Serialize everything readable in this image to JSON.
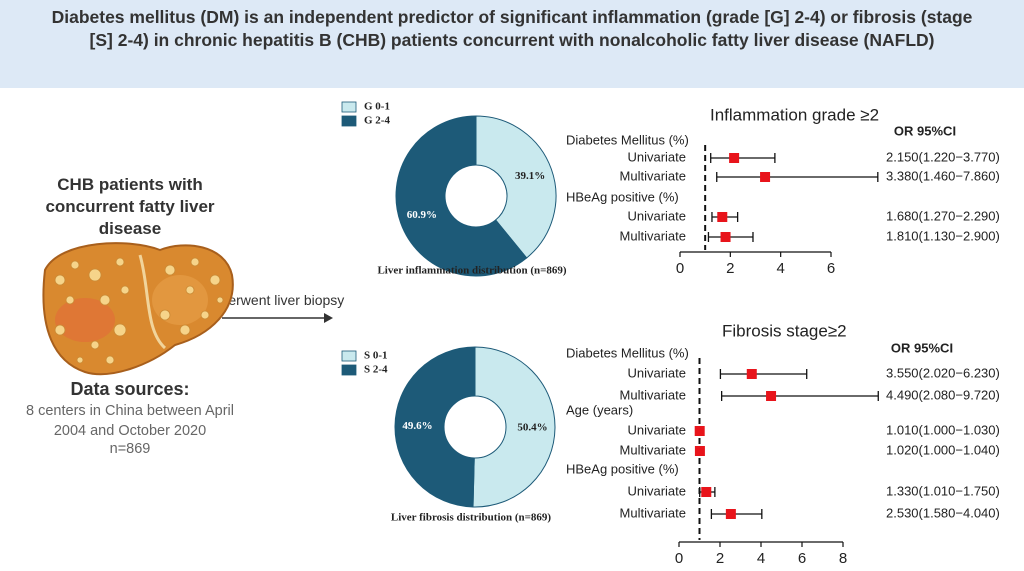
{
  "title": "Diabetes mellitus (DM) is an independent predictor of significant inflammation (grade [G] 2-4) or fibrosis (stage [S] 2-4) in chronic hepatitis B (CHB) patients concurrent with nonalcoholic fatty liver disease (NAFLD)",
  "left": {
    "heading": "CHB patients with concurrent fatty liver disease",
    "arrow_label": "underwent liver biopsy",
    "sources_title": "Data sources:",
    "sources_text": "8 centers in China between April 2004 and October 2020",
    "n": "n=869"
  },
  "chart_data": [
    {
      "type": "donut",
      "title": "Liver inflammation distribution (n=869)",
      "categories": [
        "G 0-1",
        "G 2-4"
      ],
      "values": [
        39.1,
        60.9
      ],
      "value_labels": [
        "39.1%",
        "60.9%"
      ],
      "colors": [
        "#c9e9ee",
        "#1d5a78"
      ]
    },
    {
      "type": "forest",
      "title": "Inflammation grade ≥2",
      "column_header": "OR 95%CI",
      "xlim": [
        0,
        6
      ],
      "xticks": [
        0,
        2,
        4,
        6
      ],
      "reference": 1,
      "marker_color": "#e8141b",
      "groups": [
        {
          "name": "Diabetes Mellitus (%)",
          "rows": [
            {
              "label": "Univariate",
              "or": 2.15,
              "lower": 1.22,
              "upper": 3.77,
              "text": "2.150(1.220−3.770)"
            },
            {
              "label": "Multivariate",
              "or": 3.38,
              "lower": 1.46,
              "upper": 7.86,
              "text": "3.380(1.460−7.860)"
            }
          ]
        },
        {
          "name": "HBeAg positive (%)",
          "rows": [
            {
              "label": "Univariate",
              "or": 1.68,
              "lower": 1.27,
              "upper": 2.29,
              "text": "1.680(1.270−2.290)"
            },
            {
              "label": "Multivariate",
              "or": 1.81,
              "lower": 1.13,
              "upper": 2.9,
              "text": "1.810(1.130−2.900)"
            }
          ]
        }
      ]
    },
    {
      "type": "donut",
      "title": "Liver fibrosis distribution (n=869)",
      "categories": [
        "S 0-1",
        "S 2-4"
      ],
      "values": [
        50.4,
        49.6
      ],
      "value_labels": [
        "50.4%",
        "49.6%"
      ],
      "colors": [
        "#c9e9ee",
        "#1d5a78"
      ]
    },
    {
      "type": "forest",
      "title": "Fibrosis stage≥2",
      "column_header": "OR 95%CI",
      "xlim": [
        0,
        8
      ],
      "xticks": [
        0,
        2,
        4,
        6,
        8
      ],
      "reference": 1,
      "marker_color": "#e8141b",
      "groups": [
        {
          "name": "Diabetes Mellitus (%)",
          "rows": [
            {
              "label": "Univariate",
              "or": 3.55,
              "lower": 2.02,
              "upper": 6.23,
              "text": "3.550(2.020−6.230)"
            },
            {
              "label": "Multivariate",
              "or": 4.49,
              "lower": 2.08,
              "upper": 9.72,
              "text": "4.490(2.080−9.720)"
            }
          ]
        },
        {
          "name": "Age (years)",
          "rows": [
            {
              "label": "Univariate",
              "or": 1.01,
              "lower": 1.0,
              "upper": 1.03,
              "text": "1.010(1.000−1.030)"
            },
            {
              "label": "Multivariate",
              "or": 1.02,
              "lower": 1.0,
              "upper": 1.04,
              "text": "1.020(1.000−1.040)"
            }
          ]
        },
        {
          "name": "HBeAg positive (%)",
          "rows": [
            {
              "label": "Univariate",
              "or": 1.33,
              "lower": 1.01,
              "upper": 1.75,
              "text": "1.330(1.010−1.750)"
            },
            {
              "label": "Multivariate",
              "or": 2.53,
              "lower": 1.58,
              "upper": 4.04,
              "text": "2.530(1.580−4.040)"
            }
          ]
        }
      ]
    }
  ]
}
